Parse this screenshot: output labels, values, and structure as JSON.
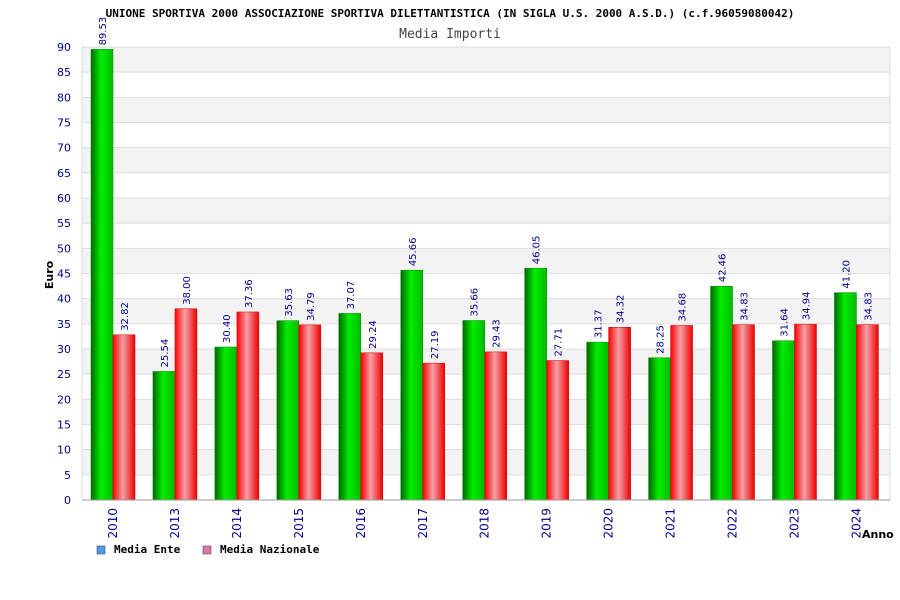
{
  "chart_data": {
    "type": "bar",
    "title": "UNIONE SPORTIVA 2000 ASSOCIAZIONE SPORTIVA DILETTANTISTICA (IN SIGLA U.S. 2000 A.S.D.) (c.f.96059080042)",
    "subtitle": "Media Importi",
    "xlabel": "Anno",
    "ylabel": "Euro",
    "ylim": [
      0,
      90
    ],
    "ytick_step": 5,
    "grid": true,
    "legend_position": "bottom-left",
    "categories": [
      "2010",
      "2013",
      "2014",
      "2015",
      "2016",
      "2017",
      "2018",
      "2019",
      "2020",
      "2021",
      "2022",
      "2023",
      "2024"
    ],
    "series": [
      {
        "name": "Media Ente",
        "color": "#00cc00",
        "legend_color": "#5599ee",
        "values": [
          89.53,
          25.54,
          30.4,
          35.63,
          37.07,
          45.66,
          35.66,
          46.05,
          31.37,
          28.25,
          42.46,
          31.64,
          41.2
        ],
        "labels": [
          "89.53",
          "25.54",
          "30.40",
          "35.63",
          "37.07",
          "45.66",
          "35.66",
          "46.05",
          "31.37",
          "28.25",
          "42.46",
          "31.64",
          "41.20"
        ]
      },
      {
        "name": "Media Nazionale",
        "color": "#ee1111",
        "legend_color": "#dd77aa",
        "values": [
          32.82,
          38.0,
          37.36,
          34.79,
          29.24,
          27.19,
          29.43,
          27.71,
          34.32,
          34.68,
          34.83,
          34.94,
          34.83
        ],
        "labels": [
          "32.82",
          "38.00",
          "37.36",
          "34.79",
          "29.24",
          "27.19",
          "29.43",
          "27.71",
          "34.32",
          "34.68",
          "34.83",
          "34.94",
          "34.83"
        ]
      }
    ]
  }
}
